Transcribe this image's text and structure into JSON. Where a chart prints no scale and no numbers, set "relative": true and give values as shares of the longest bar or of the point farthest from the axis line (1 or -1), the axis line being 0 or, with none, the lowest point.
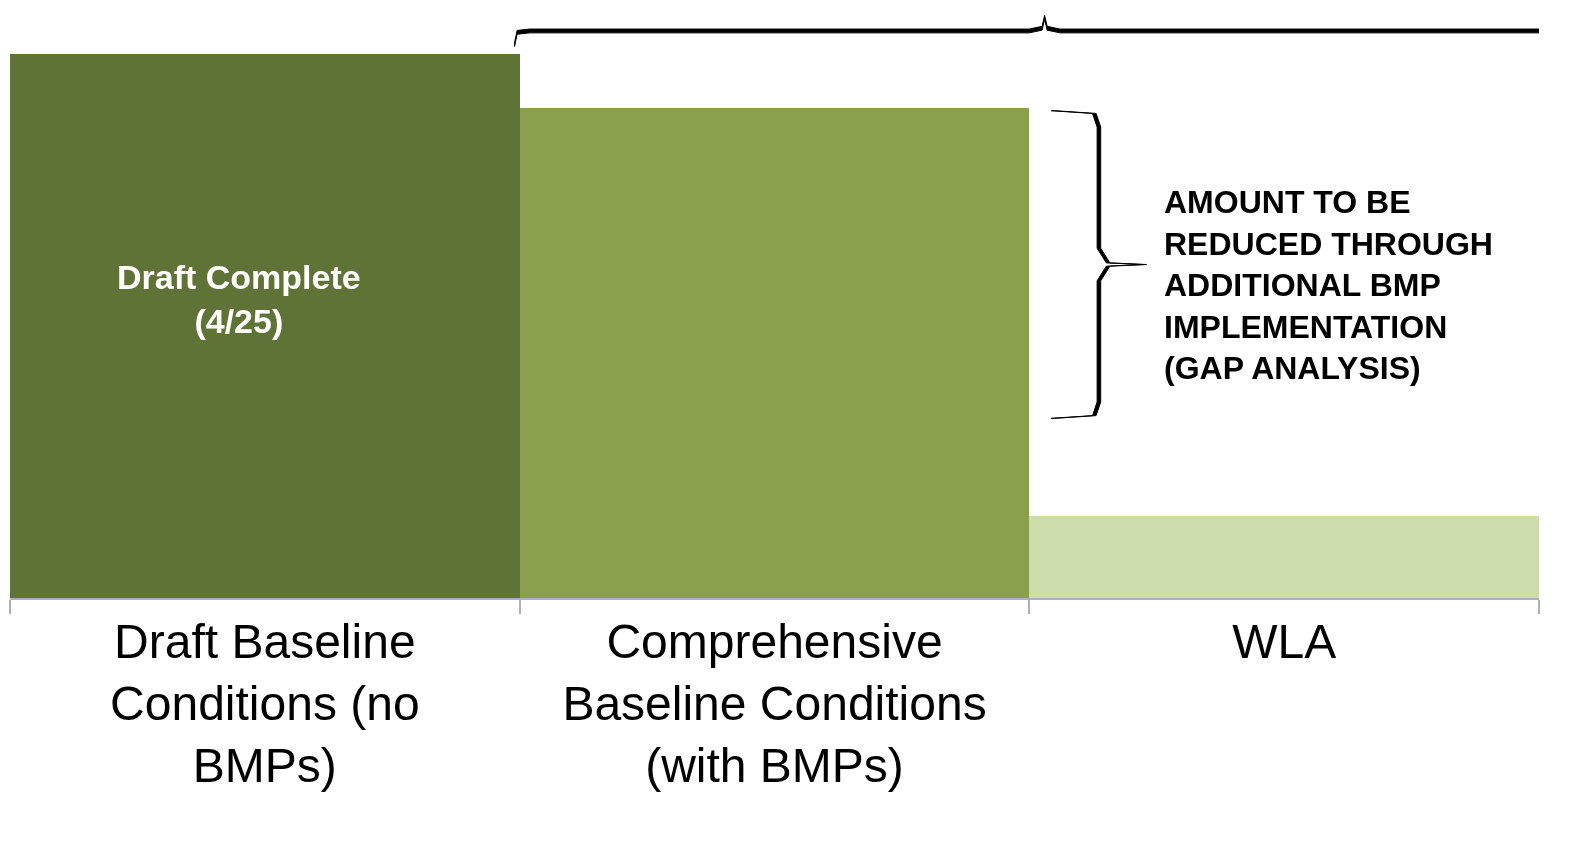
{
  "chart_data": {
    "type": "bar",
    "relative": true,
    "categories": [
      "Draft Baseline Conditions (no BMPs)",
      "Comprehensive Baseline Conditions (with BMPs)",
      "WLA"
    ],
    "values": [
      1,
      0.9,
      0.15
    ],
    "colors": [
      "#607337",
      "#8aa04d",
      "#cddcad"
    ],
    "annotations": [
      "Draft Complete (4/25)",
      "AMOUNT TO BE REDUCED THROUGH ADDITIONAL BMP IMPLEMENTATION (GAP ANALYSIS)"
    ],
    "legend": false
  }
}
